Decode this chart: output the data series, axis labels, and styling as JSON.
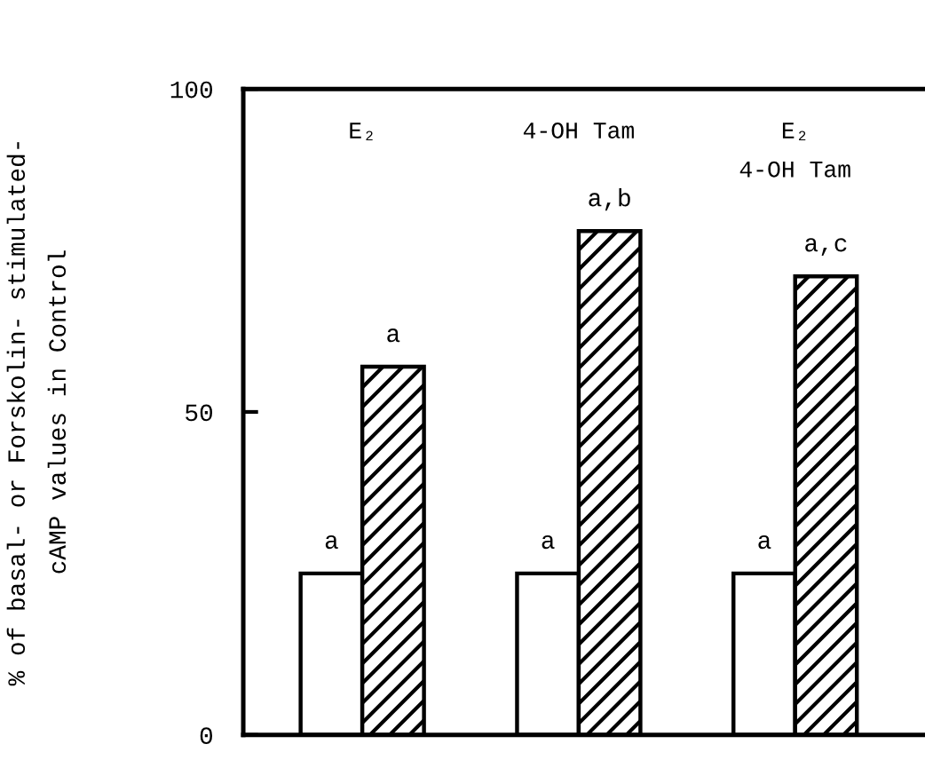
{
  "chart_data": {
    "type": "bar",
    "ylabel": "% of basal- or Forskolin- stimulated-\ncAMP values in Control",
    "categories": [
      "E₂",
      "4-OH Tam",
      "E₂\n4-OH Tam"
    ],
    "series": [
      {
        "color": "#ffffff",
        "values": [
          25,
          25,
          25
        ],
        "value_labels": [
          "a",
          "a",
          "a"
        ]
      },
      {
        "color": "#000000",
        "values": [
          57,
          78,
          71
        ],
        "value_labels": [
          "a",
          "a,b",
          "a,c"
        ]
      }
    ],
    "ylim": [
      0,
      100
    ],
    "yticks": [
      0,
      50,
      100
    ],
    "grid": false,
    "legend": false
  }
}
